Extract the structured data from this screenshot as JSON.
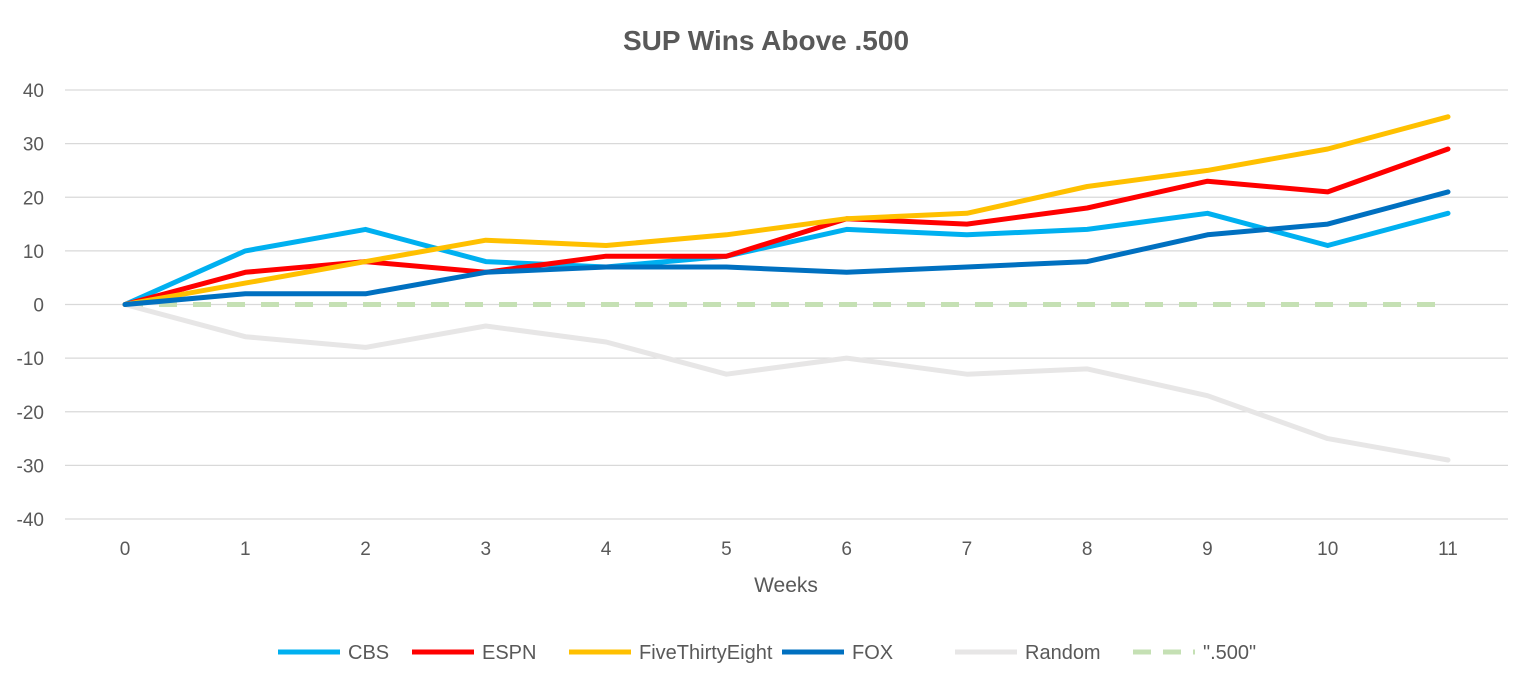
{
  "chart_data": {
    "type": "line",
    "title": "SUP Wins Above .500",
    "xlabel": "Weeks",
    "ylabel": "",
    "x": [
      0,
      1,
      2,
      3,
      4,
      5,
      6,
      7,
      8,
      9,
      10,
      11
    ],
    "ylim": [
      -40,
      40
    ],
    "yticks": [
      -40,
      -30,
      -20,
      -10,
      0,
      10,
      20,
      30,
      40
    ],
    "grid": true,
    "legend_position": "bottom",
    "series": [
      {
        "name": "CBS",
        "color": "#00B0F0",
        "dashed": false,
        "values": [
          0,
          10,
          14,
          8,
          7,
          9,
          14,
          13,
          14,
          17,
          11,
          17
        ]
      },
      {
        "name": "ESPN",
        "color": "#FF0000",
        "dashed": false,
        "values": [
          0,
          6,
          8,
          6,
          9,
          9,
          16,
          15,
          18,
          23,
          21,
          29
        ]
      },
      {
        "name": "FiveThirtyEight",
        "color": "#FFC000",
        "dashed": false,
        "values": [
          0,
          4,
          8,
          12,
          11,
          13,
          16,
          17,
          22,
          25,
          29,
          35
        ]
      },
      {
        "name": "FOX",
        "color": "#0070C0",
        "dashed": false,
        "values": [
          0,
          2,
          2,
          6,
          7,
          7,
          6,
          7,
          8,
          13,
          15,
          21
        ]
      },
      {
        "name": "Random",
        "color": "#E7E6E6",
        "dashed": false,
        "values": [
          0,
          -6,
          -8,
          -4,
          -7,
          -13,
          -10,
          -13,
          -12,
          -17,
          -25,
          -29
        ]
      },
      {
        "name": "\".500\"",
        "color": "#C5E0B4",
        "dashed": true,
        "values": [
          0,
          0,
          0,
          0,
          0,
          0,
          0,
          0,
          0,
          0,
          0,
          0
        ]
      }
    ]
  }
}
